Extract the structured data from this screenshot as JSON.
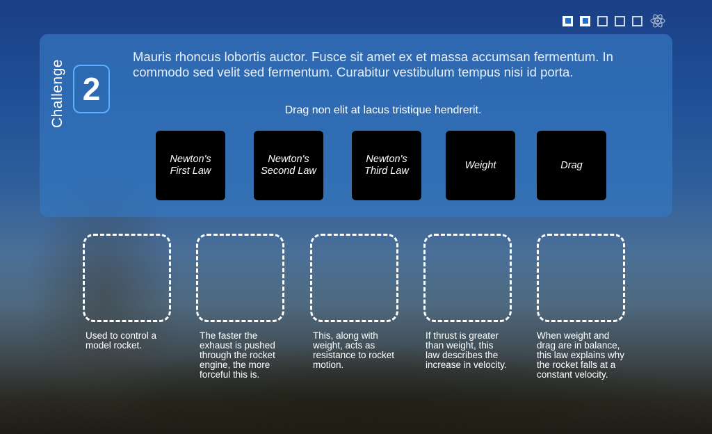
{
  "progress": {
    "total_steps": 5,
    "completed_steps": 2,
    "icon": "atom-icon"
  },
  "challenge": {
    "label": "Challenge",
    "number": "2",
    "intro": "Mauris rhoncus lobortis auctor. Fusce sit amet ex et massa accumsan fermentum. In commodo sed velit sed fermentum. Curabitur vestibulum tempus nisi id porta.",
    "instruction": "Drag non elit at lacus tristique hendrerit."
  },
  "tiles": [
    {
      "label": "Newton's First Law"
    },
    {
      "label": "Newton's Second Law"
    },
    {
      "label": "Newton's Third Law"
    },
    {
      "label": "Weight"
    },
    {
      "label": "Drag"
    }
  ],
  "targets": [
    {
      "description": "Used to control a model rocket."
    },
    {
      "description": "The faster the exhaust is pushed through the rocket engine, the more forceful this is."
    },
    {
      "description": "This, along with weight, acts as resistance to rocket motion."
    },
    {
      "description": "If thrust is greater than weight, this law describes the increase in velocity."
    },
    {
      "description": "When weight and drag are in balance, this law explains why the rocket falls at a constant velocity."
    }
  ],
  "colors": {
    "accent": "#1d6fd0",
    "panel": "#3476be",
    "badge_border": "#5ab0ff"
  }
}
